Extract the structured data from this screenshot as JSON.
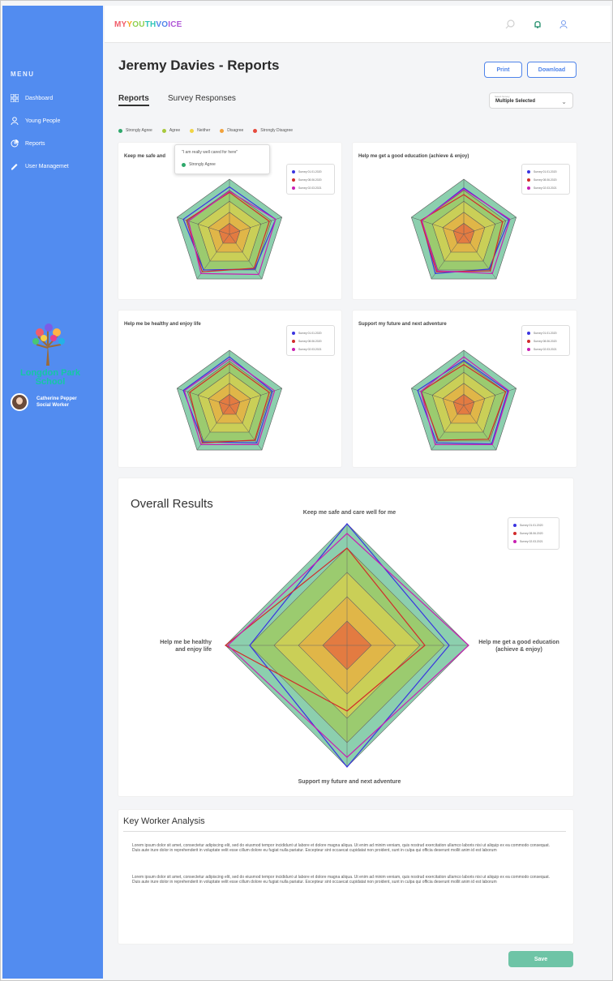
{
  "app": {
    "brand_parts": [
      {
        "text": "MY",
        "color": "#f15d6a"
      },
      {
        "text": "Y",
        "color": "#f5a623"
      },
      {
        "text": "OU",
        "color": "#8fd14f"
      },
      {
        "text": "TH",
        "color": "#2fc5b8"
      },
      {
        "text": "VO",
        "color": "#4f84ea"
      },
      {
        "text": "ICE",
        "color": "#b055d7"
      }
    ],
    "top_icons": [
      "search-icon",
      "notification-icon",
      "user-icon"
    ]
  },
  "sidebar": {
    "menu_title": "MENU",
    "items": [
      {
        "label": "Dashboard",
        "icon": "dashboard-icon"
      },
      {
        "label": "Young People",
        "icon": "person-icon"
      },
      {
        "label": "Reports",
        "icon": "pie-chart-icon"
      },
      {
        "label": "User Managemet",
        "icon": "edit-icon"
      }
    ],
    "school_name": "Longdon Park School",
    "user": {
      "name": "Catherine Pepper",
      "role": "Social Worker"
    }
  },
  "page": {
    "title": "Jeremy Davies - Reports",
    "buttons": {
      "print": "Print",
      "download": "Download"
    },
    "tabs": [
      {
        "label": "Reports",
        "active": true
      },
      {
        "label": "Survey Responses",
        "active": false
      }
    ],
    "filter": {
      "tiny_label": "Select Survey",
      "value": "Multiple Selected"
    }
  },
  "scale_legend": [
    {
      "label": "Strongly Agree",
      "color": "#2ea86b"
    },
    {
      "label": "Agree",
      "color": "#a8c93c"
    },
    {
      "label": "Neither",
      "color": "#f1d444"
    },
    {
      "label": "Disagree",
      "color": "#f2a23c"
    },
    {
      "label": "Strongly Disagree",
      "color": "#e64b3d"
    }
  ],
  "surveys": [
    {
      "label": "Survey 01.01.2020",
      "color": "#3a34e0"
    },
    {
      "label": "Survey 08.06.2020",
      "color": "#d12b2b"
    },
    {
      "label": "Survey 02.03.2021",
      "color": "#c81fb2"
    }
  ],
  "overall_surveys": [
    {
      "label": "Survey 01.01.2020",
      "color": "#3a34e0"
    },
    {
      "label": "Survey 08.06.2020",
      "color": "#d12b2b"
    },
    {
      "label": "Survey 02.03.2021",
      "color": "#c81fb2"
    }
  ],
  "tooltip": {
    "quote": "\"I am really well cared for here\"",
    "answer": "Strongly Agree"
  },
  "cards": [
    {
      "title": "Keep me safe and care well for me",
      "title_visible": "Keep me safe and",
      "scores": [
        [
          4.3,
          4.4,
          3.9,
          4.0,
          4.4
        ],
        [
          3.8,
          3.8,
          3.8,
          4.2,
          4.1
        ],
        [
          3.9,
          4.4,
          4.5,
          4.4,
          3.9
        ]
      ]
    },
    {
      "title": "Help me get a good education (achieve & enjoy)",
      "scores": [
        [
          4.2,
          4.3,
          3.9,
          4.4,
          4.0
        ],
        [
          3.6,
          3.7,
          4.1,
          4.2,
          4.1
        ],
        [
          4.1,
          4.4,
          4.4,
          4.1,
          4.0
        ]
      ]
    },
    {
      "title": "Help me be healthy and enjoy life",
      "scores": [
        [
          4.4,
          4.1,
          4.2,
          4.1,
          4.4
        ],
        [
          3.8,
          3.8,
          3.9,
          4.2,
          3.8
        ],
        [
          4.2,
          4.3,
          4.4,
          4.4,
          4.3
        ]
      ]
    },
    {
      "title": "Support my future and next adventure",
      "scores": [
        [
          4.1,
          4.2,
          4.3,
          4.2,
          4.4
        ],
        [
          3.7,
          4.0,
          3.8,
          3.9,
          4.1
        ],
        [
          4.4,
          4.3,
          4.4,
          4.4,
          4.1
        ]
      ]
    }
  ],
  "overall": {
    "title": "Overall Results",
    "axes": [
      "Keep me safe and care well for me",
      "Help me get a good education (achieve & enjoy)",
      "Support my future and next adventure",
      "Help me be healthy and enjoy life"
    ],
    "scores": [
      [
        5,
        4.2,
        5,
        4.0
      ],
      [
        4.0,
        3.2,
        2.7,
        5
      ],
      [
        4.6,
        5,
        4.6,
        4.9
      ]
    ]
  },
  "analysis": {
    "title": "Key Worker Analysis",
    "paragraphs": [
      "Lorem ipsum dolor sit amet, consectetur adipiscing elit, sed do eiusmod tempor incididunt ut labore et dolore magna aliqua. Ut enim ad minim veniam, quis nostrud exercitation ullamco laboris nisi ut aliquip ex ea commodo consequat. Duis aute irure dolor in reprehenderit in voluptate velit esse cillum dolore eu fugiat nulla pariatur. Excepteur sint occaecat cupidatat non proident, sunt in culpa qui officia deserunt mollit anim id est laborum",
      "Lorem ipsum dolor sit amet, consectetur adipiscing elit, sed do eiusmod tempor incididunt ut labore et dolore magna aliqua. Ut enim ad minim veniam, quis nostrud exercitation ullamco laboris nisi ut aliquip ex ea commodo consequat. Duis aute irure dolor in reprehenderit in voluptate velit esse cillum dolore eu fugiat nulla pariatur. Excepteur sint occaecat cupidatat non proident, sunt in culpa qui officia deserunt mollit anim id est laborum"
    ],
    "save_label": "Save"
  }
}
